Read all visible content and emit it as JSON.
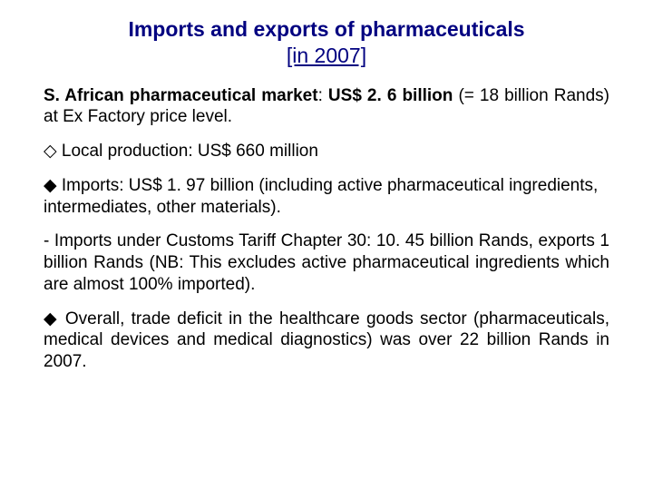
{
  "title": {
    "line1": "Imports and exports of pharmaceuticals",
    "line2": "[in 2007]"
  },
  "para1": {
    "bold": "S. African pharmaceutical market",
    "rest": ": ",
    "bold2": "US$ 2. 6 billion",
    "rest2": " (= 18 billion Rands) at Ex Factory price level."
  },
  "bullets": {
    "local": "◇ Local production: US$ 660 million",
    "imports": "◆ Imports: US$ 1. 97 billion (including active pharmaceutical ingredients, intermediates, other materials).",
    "customs": "- Imports under Customs Tariff Chapter 30: 10. 45 billion Rands, exports 1 billion Rands (NB: This excludes active pharmaceutical ingredients which are almost 100% imported).",
    "deficit": "◆ Overall, trade deficit in the healthcare goods sector (pharmaceuticals, medical devices and medical diagnostics) was over 22 billion Rands in 2007."
  },
  "colors": {
    "title": "#000080",
    "text": "#000000",
    "background": "#ffffff"
  },
  "typography": {
    "title_fontsize": 23,
    "body_fontsize": 19,
    "font_family": "Arial"
  }
}
